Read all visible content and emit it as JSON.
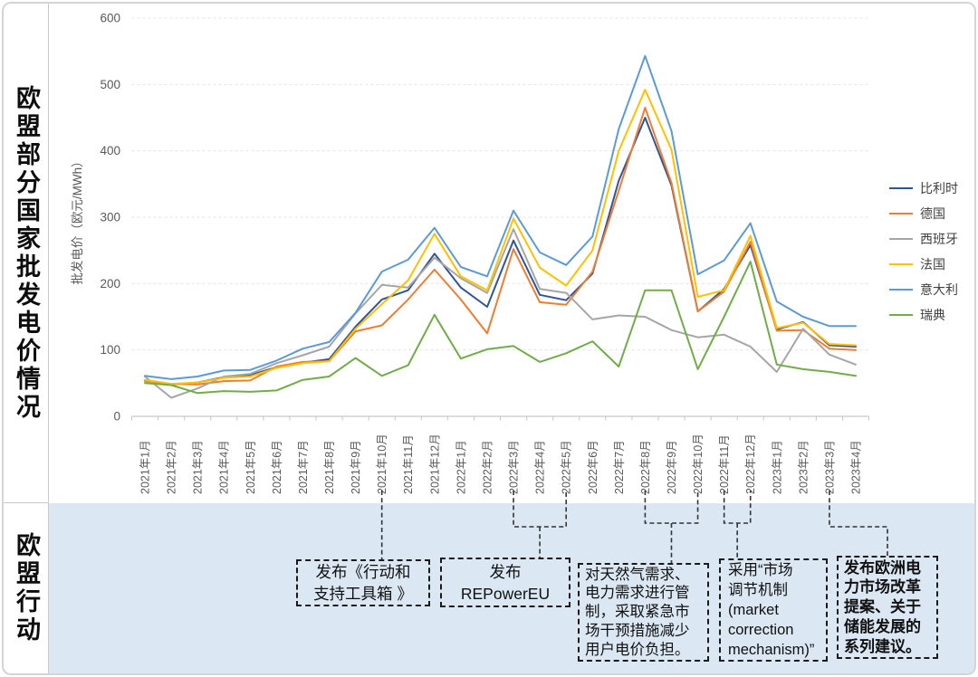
{
  "sidebar": {
    "top_label": "欧盟部分国家批发电价情况",
    "bottom_label": "欧盟行动"
  },
  "chart_data": {
    "type": "line",
    "title": "",
    "ylabel": "批发电价（欧元/MWh）",
    "xlabel": "",
    "ylim": [
      0,
      600
    ],
    "y_ticks": [
      0,
      100,
      200,
      300,
      400,
      500,
      600
    ],
    "grid": "horizontal dashed",
    "legend_position": "right",
    "categories": [
      "2021年1月",
      "2021年2月",
      "2021年3月",
      "2021年4月",
      "2021年5月",
      "2021年6月",
      "2021年7月",
      "2021年8月",
      "2021年9月",
      "2021年10月",
      "2021年11月",
      "2021年12月",
      "2022年1月",
      "2022年2月",
      "2022年3月",
      "2022年4月",
      "2022年5月",
      "2022年6月",
      "2022年7月",
      "2022年8月",
      "2022年9月",
      "2022年10月",
      "2022年11月",
      "2022年12月",
      "2023年1月",
      "2023年2月",
      "2023年3月",
      "2023年4月"
    ],
    "series": [
      {
        "name": "比利时",
        "key": "belgium",
        "color": "#2F5597",
        "values": [
          54,
          48,
          51,
          59,
          62,
          74,
          81,
          86,
          135,
          176,
          190,
          245,
          194,
          165,
          265,
          183,
          175,
          215,
          355,
          450,
          348,
          158,
          192,
          258,
          131,
          142,
          107,
          105
        ]
      },
      {
        "name": "德国",
        "key": "germany",
        "color": "#ED7D31",
        "values": [
          53,
          49,
          48,
          53,
          54,
          75,
          82,
          83,
          128,
          137,
          176,
          221,
          176,
          125,
          252,
          172,
          168,
          218,
          340,
          465,
          352,
          158,
          188,
          263,
          129,
          130,
          102,
          100
        ]
      },
      {
        "name": "西班牙",
        "key": "spain",
        "color": "#A6A6A6",
        "values": [
          60,
          28,
          42,
          60,
          64,
          80,
          92,
          105,
          155,
          198,
          194,
          239,
          208,
          186,
          282,
          192,
          186,
          146,
          152,
          150,
          130,
          119,
          123,
          105,
          67,
          132,
          93,
          78
        ]
      },
      {
        "name": "法国",
        "key": "france",
        "color": "#FFC000",
        "values": [
          55,
          49,
          51,
          58,
          60,
          73,
          80,
          83,
          132,
          169,
          205,
          275,
          211,
          190,
          298,
          224,
          197,
          250,
          400,
          492,
          402,
          180,
          190,
          272,
          133,
          141,
          109,
          107
        ]
      },
      {
        "name": "意大利",
        "key": "italy",
        "color": "#5B9BD5",
        "values": [
          61,
          56,
          60,
          69,
          70,
          84,
          102,
          112,
          156,
          218,
          236,
          284,
          225,
          211,
          310,
          247,
          228,
          271,
          433,
          543,
          430,
          214,
          235,
          291,
          173,
          150,
          136,
          136
        ]
      },
      {
        "name": "瑞典",
        "key": "sweden",
        "color": "#70AD47",
        "values": [
          50,
          47,
          35,
          38,
          37,
          39,
          55,
          60,
          88,
          61,
          77,
          153,
          87,
          101,
          106,
          82,
          95,
          113,
          75,
          190,
          190,
          71,
          150,
          233,
          78,
          71,
          67,
          61
        ]
      }
    ]
  },
  "annotations": {
    "boxes": [
      {
        "text": "发布《行动和\n支持工具箱 》",
        "month_labels": [
          "2021年10月"
        ],
        "month_indices": [
          9
        ]
      },
      {
        "text": "发布\nREPowerEU",
        "month_labels": [
          "2022年3月",
          "2022年5月"
        ],
        "month_indices": [
          14,
          16
        ]
      },
      {
        "text": "对天然气需求、\n电力需求进行管\n制，采取紧急市\n场干预措施减少\n用户电价负担。",
        "month_labels": [
          "2022年8月",
          "2022年10月"
        ],
        "month_indices": [
          19,
          21
        ]
      },
      {
        "text": "采用“市场\n调节机制\n(market\ncorrection\nmechanism)”",
        "month_labels": [
          "2022年11月",
          "2022年12月"
        ],
        "month_indices": [
          22,
          23
        ]
      },
      {
        "text": "发布欧洲电\n力市场改革\n提案、关于\n储能发展的\n系列建议。",
        "month_labels": [
          "2023年3月"
        ],
        "month_indices": [
          26
        ]
      }
    ]
  },
  "colors": {
    "panel_blue": "#DBE7F3",
    "card_border": "#D5D5D5",
    "gridline": "#E3E3E3",
    "axis_line": "#C6C6C6",
    "tick_label": "#595959",
    "connector": "#333333"
  }
}
